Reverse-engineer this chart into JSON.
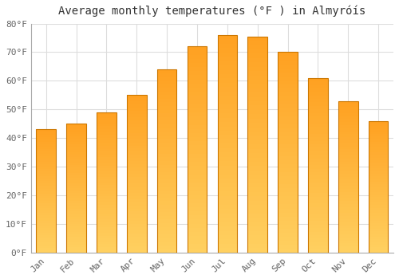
{
  "title": "Average monthly temperatures (°F ) in Almyróís",
  "months": [
    "Jan",
    "Feb",
    "Mar",
    "Apr",
    "May",
    "Jun",
    "Jul",
    "Aug",
    "Sep",
    "Oct",
    "Nov",
    "Dec"
  ],
  "values": [
    43,
    45,
    49,
    55,
    64,
    72,
    76,
    75.5,
    70,
    61,
    53,
    46
  ],
  "bar_color_orange": "#FFA020",
  "bar_color_yellow": "#FFD060",
  "bar_edge_color": "#CC7700",
  "ylim": [
    0,
    80
  ],
  "yticks": [
    0,
    10,
    20,
    30,
    40,
    50,
    60,
    70,
    80
  ],
  "ytick_labels": [
    "0°F",
    "10°F",
    "20°F",
    "30°F",
    "40°F",
    "50°F",
    "60°F",
    "70°F",
    "80°F"
  ],
  "background_color": "#FFFFFF",
  "plot_bg_color": "#FFFFFF",
  "grid_color": "#DDDDDD",
  "title_fontsize": 10,
  "tick_fontsize": 8,
  "font_family": "monospace"
}
